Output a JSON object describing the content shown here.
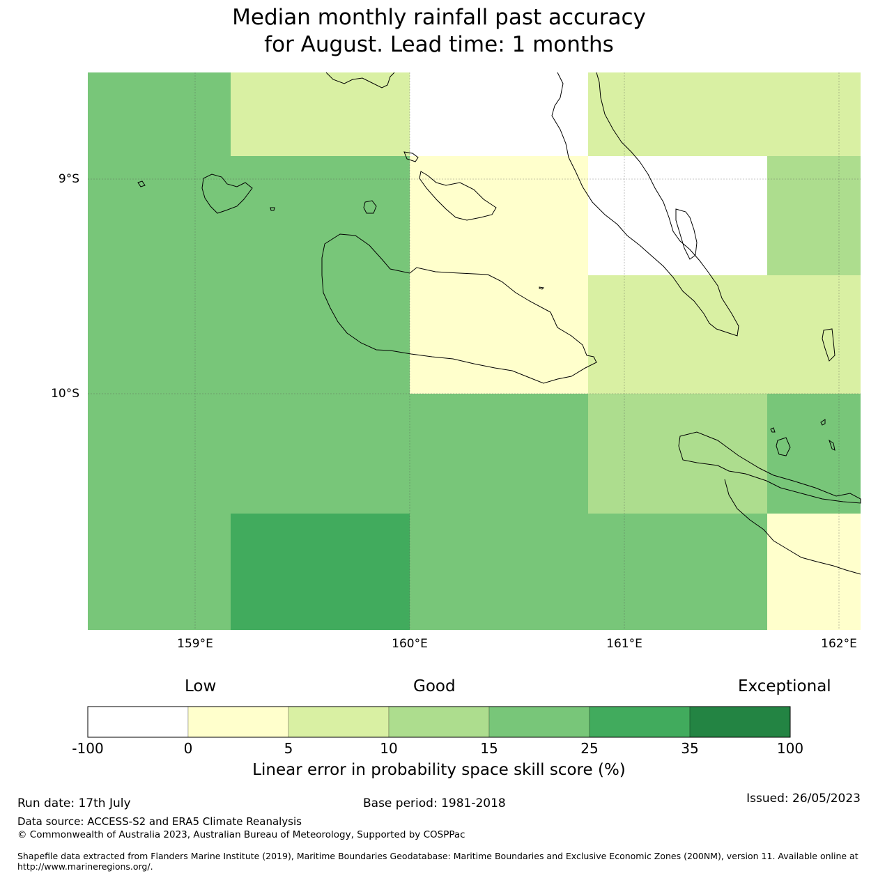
{
  "title": {
    "line1": "Median monthly rainfall past accuracy",
    "line2": "for August. Lead time: 1 months"
  },
  "map": {
    "lat_labels": [
      "9°S",
      "10°S"
    ],
    "lon_labels": [
      "159°E",
      "160°E",
      "161°E",
      "162°E"
    ],
    "grid_cells": [
      {
        "row": 0,
        "col": 0,
        "skill_class": "15-25"
      },
      {
        "row": 0,
        "col": 1,
        "skill_class": "5-10"
      },
      {
        "row": 0,
        "col": 2,
        "skill_class": "-100-0"
      },
      {
        "row": 0,
        "col": 3,
        "skill_class": "5-10"
      },
      {
        "row": 0,
        "col": 4,
        "skill_class": "5-10"
      },
      {
        "row": 1,
        "col": 0,
        "skill_class": "15-25"
      },
      {
        "row": 1,
        "col": 1,
        "skill_class": "15-25"
      },
      {
        "row": 1,
        "col": 2,
        "skill_class": "0-5"
      },
      {
        "row": 1,
        "col": 3,
        "skill_class": "-100-0"
      },
      {
        "row": 1,
        "col": 4,
        "skill_class": "10-15"
      },
      {
        "row": 2,
        "col": 0,
        "skill_class": "15-25"
      },
      {
        "row": 2,
        "col": 1,
        "skill_class": "15-25"
      },
      {
        "row": 2,
        "col": 2,
        "skill_class": "0-5"
      },
      {
        "row": 2,
        "col": 3,
        "skill_class": "5-10"
      },
      {
        "row": 2,
        "col": 4,
        "skill_class": "5-10"
      },
      {
        "row": 3,
        "col": 0,
        "skill_class": "15-25"
      },
      {
        "row": 3,
        "col": 1,
        "skill_class": "15-25"
      },
      {
        "row": 3,
        "col": 2,
        "skill_class": "15-25"
      },
      {
        "row": 3,
        "col": 3,
        "skill_class": "10-15"
      },
      {
        "row": 3,
        "col": 4,
        "skill_class": "15-25"
      },
      {
        "row": 4,
        "col": 0,
        "skill_class": "15-25"
      },
      {
        "row": 4,
        "col": 1,
        "skill_class": "25-35"
      },
      {
        "row": 4,
        "col": 2,
        "skill_class": "15-25"
      },
      {
        "row": 4,
        "col": 3,
        "skill_class": "15-25"
      },
      {
        "row": 4,
        "col": 4,
        "skill_class": "0-5"
      }
    ]
  },
  "legend": {
    "qualitative": [
      "Low",
      "Good",
      "Exceptional"
    ],
    "ticks": [
      "-100",
      "0",
      "5",
      "10",
      "15",
      "25",
      "35",
      "100"
    ],
    "colors": [
      "#ffffff",
      "#ffffcc",
      "#d9f0a3",
      "#addd8e",
      "#78c679",
      "#41ab5d",
      "#238443"
    ],
    "label": "Linear error in probability space skill score (%)"
  },
  "footer": {
    "run_date": "Run date: 17th July",
    "base_period": "Base period: 1981-2018",
    "issued": "Issued: 26/05/2023",
    "data_source": "Data source: ACCESS-S2 and ERA5 Climate Reanalysis",
    "copyright": "© Commonwealth of Australia 2023, Australian Bureau of Meteorology, Supported by COSPPac",
    "shapefile_line1": "Shapefile data extracted from Flanders Marine Institute (2019), Maritime Boundaries Geodatabase: Maritime Boundaries and Exclusive Economic Zones (200NM), version 11. Available online at",
    "shapefile_line2": "http://www.marineregions.org/."
  }
}
